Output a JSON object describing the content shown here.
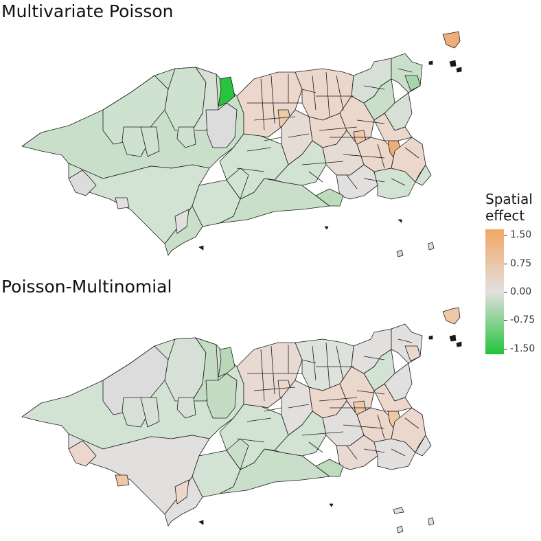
{
  "panels": [
    {
      "title": "Multivariate Poisson"
    },
    {
      "title": "Poisson-Multinomial"
    }
  ],
  "legend": {
    "title_line1": "Spatial",
    "title_line2": "effect",
    "ticks": [
      {
        "value": 1.5,
        "label": "1.50"
      },
      {
        "value": 0.75,
        "label": "0.75"
      },
      {
        "value": 0.0,
        "label": "0.00"
      },
      {
        "value": -0.75,
        "label": "-0.75"
      },
      {
        "value": -1.5,
        "label": "-1.50"
      }
    ],
    "range": [
      -1.65,
      1.65
    ],
    "colors": {
      "high": "#f2a765",
      "mid": "#e2e0df",
      "low": "#22c43a"
    }
  },
  "map_style": {
    "border_color": "#1a1a1a",
    "colors": {
      "strong_green": "#28c43d",
      "light_green": "#c9dfc9",
      "pale_green": "#d3e3d3",
      "neutral": "#e2e0df",
      "pale_orange": "#ebd7cb",
      "light_orange": "#efc8a8",
      "orange": "#f0ad78"
    }
  }
}
